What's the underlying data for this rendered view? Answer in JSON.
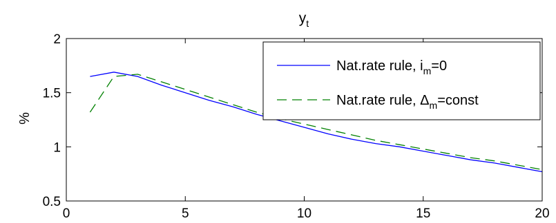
{
  "chart_data": {
    "type": "line",
    "title": "y",
    "title_subscript": "t",
    "xlabel": "",
    "ylabel": "%",
    "xlim": [
      0,
      20
    ],
    "ylim": [
      0.5,
      2
    ],
    "xticks": [
      0,
      5,
      10,
      15,
      20
    ],
    "yticks": [
      0.5,
      1,
      1.5,
      2
    ],
    "grid": false,
    "legend_position": "top-right",
    "series": [
      {
        "name_main": "Nat.rate rule, i",
        "name_sub": "m",
        "name_tail": "=0",
        "color": "#0000ff",
        "dash": "solid",
        "x": [
          1,
          2,
          3,
          4,
          5,
          6,
          7,
          8,
          9,
          10,
          11,
          12,
          13,
          14,
          15,
          16,
          17,
          18,
          19,
          20
        ],
        "y": [
          1.65,
          1.69,
          1.65,
          1.57,
          1.5,
          1.43,
          1.37,
          1.3,
          1.24,
          1.18,
          1.12,
          1.07,
          1.03,
          1.0,
          0.96,
          0.92,
          0.88,
          0.85,
          0.81,
          0.77
        ]
      },
      {
        "name_main": "Nat.rate rule, Δ",
        "name_sub": "m",
        "name_tail": "=const",
        "color": "#008000",
        "dash": "dashed",
        "x": [
          1,
          2,
          3,
          4,
          5,
          6,
          7,
          8,
          9,
          10,
          11,
          12,
          13,
          14,
          15,
          16,
          17,
          18,
          19,
          20
        ],
        "y": [
          1.32,
          1.65,
          1.67,
          1.6,
          1.53,
          1.46,
          1.39,
          1.32,
          1.26,
          1.21,
          1.16,
          1.11,
          1.06,
          1.02,
          0.98,
          0.94,
          0.9,
          0.87,
          0.83,
          0.79
        ]
      }
    ]
  }
}
